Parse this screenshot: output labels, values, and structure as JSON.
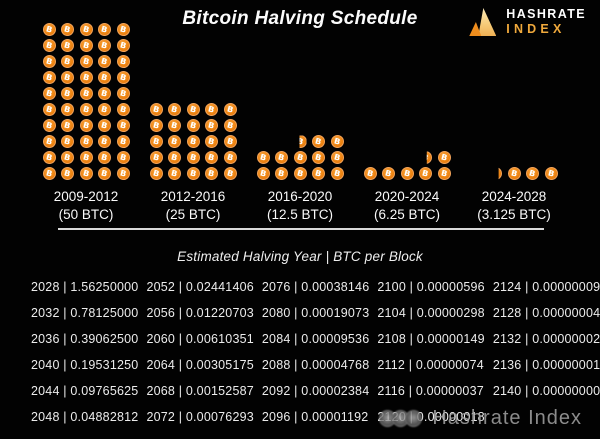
{
  "title": "Bitcoin Halving Schedule",
  "logo": {
    "line1": "HASHRATE",
    "line2": "INDEX"
  },
  "coin_symbol": "B",
  "colors": {
    "background": "#020202",
    "coin_orange": "#ee8513",
    "coin_ring": "#f2a35a",
    "logo_gold": "#f0a93c",
    "text_white": "#f2f2f2",
    "watermark_gray": "#9e9e9e"
  },
  "eras": [
    {
      "label": "2009-2012",
      "reward": "(50 BTC)",
      "full_rows": 10,
      "top_row": []
    },
    {
      "label": "2012-2016",
      "reward": "(25 BTC)",
      "full_rows": 5,
      "top_row": []
    },
    {
      "label": "2016-2020",
      "reward": "(12.5 BTC)",
      "full_rows": 2,
      "top_row": [
        "",
        "",
        "half",
        "full",
        "full"
      ]
    },
    {
      "label": "2020-2024",
      "reward": "(6.25 BTC)",
      "full_rows": 1,
      "top_row": [
        "",
        "",
        "",
        "quarter",
        "full"
      ]
    },
    {
      "label": "2024-2028",
      "reward": "(3.125 BTC)",
      "full_rows": 0,
      "top_row": [
        "",
        "sliver",
        "full",
        "full",
        "full"
      ]
    }
  ],
  "table": {
    "header": "Estimated Halving Year | BTC per Block",
    "separator": " | ",
    "rows": [
      [
        {
          "year": "2028",
          "btc": "1.56250000"
        },
        {
          "year": "2052",
          "btc": "0.02441406"
        },
        {
          "year": "2076",
          "btc": "0.00038146"
        },
        {
          "year": "2100",
          "btc": "0.00000596"
        },
        {
          "year": "2124",
          "btc": "0.00000009"
        }
      ],
      [
        {
          "year": "2032",
          "btc": "0.78125000"
        },
        {
          "year": "2056",
          "btc": "0.01220703"
        },
        {
          "year": "2080",
          "btc": "0.00019073"
        },
        {
          "year": "2104",
          "btc": "0.00000298"
        },
        {
          "year": "2128",
          "btc": "0.00000004"
        }
      ],
      [
        {
          "year": "2036",
          "btc": "0.39062500"
        },
        {
          "year": "2060",
          "btc": "0.00610351"
        },
        {
          "year": "2084",
          "btc": "0.00009536"
        },
        {
          "year": "2108",
          "btc": "0.00000149"
        },
        {
          "year": "2132",
          "btc": "0.00000002"
        }
      ],
      [
        {
          "year": "2040",
          "btc": "0.19531250"
        },
        {
          "year": "2064",
          "btc": "0.00305175"
        },
        {
          "year": "2088",
          "btc": "0.00004768"
        },
        {
          "year": "2112",
          "btc": "0.00000074"
        },
        {
          "year": "2136",
          "btc": "0.00000001"
        }
      ],
      [
        {
          "year": "2044",
          "btc": "0.09765625"
        },
        {
          "year": "2068",
          "btc": "0.00152587"
        },
        {
          "year": "2092",
          "btc": "0.00002384"
        },
        {
          "year": "2116",
          "btc": "0.00000037"
        },
        {
          "year": "2140",
          "btc": "0.00000000"
        }
      ],
      [
        {
          "year": "2048",
          "btc": "0.04882812"
        },
        {
          "year": "2072",
          "btc": "0.00076293"
        },
        {
          "year": "2096",
          "btc": "0.00001192"
        },
        {
          "year": "2120",
          "btc": "0.00000018"
        },
        null
      ]
    ]
  },
  "watermark": {
    "text": "Hashrate Index",
    "badge_icons": [
      "chat-badge",
      "chat-badge",
      "chat-badge"
    ]
  },
  "chart_data": {
    "type": "pictogram",
    "title": "Bitcoin Halving Schedule",
    "categories": [
      "2009-2012",
      "2012-2016",
      "2016-2020",
      "2020-2024",
      "2024-2028"
    ],
    "values": [
      50,
      25,
      12.5,
      6.25,
      3.125
    ],
    "unit": "BTC per block",
    "icon": "bitcoin-coin",
    "icons_per_row": 5,
    "legend_position": "none",
    "table": {
      "title": "Estimated Halving Year | BTC per Block",
      "years": [
        2028,
        2032,
        2036,
        2040,
        2044,
        2048,
        2052,
        2056,
        2060,
        2064,
        2068,
        2072,
        2076,
        2080,
        2084,
        2088,
        2092,
        2096,
        2100,
        2104,
        2108,
        2112,
        2116,
        2120,
        2124,
        2128,
        2132,
        2136,
        2140
      ],
      "btc_per_block": [
        1.5625,
        0.78125,
        0.390625,
        0.1953125,
        0.09765625,
        0.04882812,
        0.02441406,
        0.01220703,
        0.00610351,
        0.00305175,
        0.00152587,
        0.00076293,
        0.00038146,
        0.00019073,
        9.536e-05,
        4.768e-05,
        2.384e-05,
        1.192e-05,
        5.96e-06,
        2.98e-06,
        1.49e-06,
        7.4e-07,
        3.7e-07,
        1.8e-07,
        9e-08,
        4e-08,
        2e-08,
        1e-08,
        0.0
      ]
    }
  }
}
